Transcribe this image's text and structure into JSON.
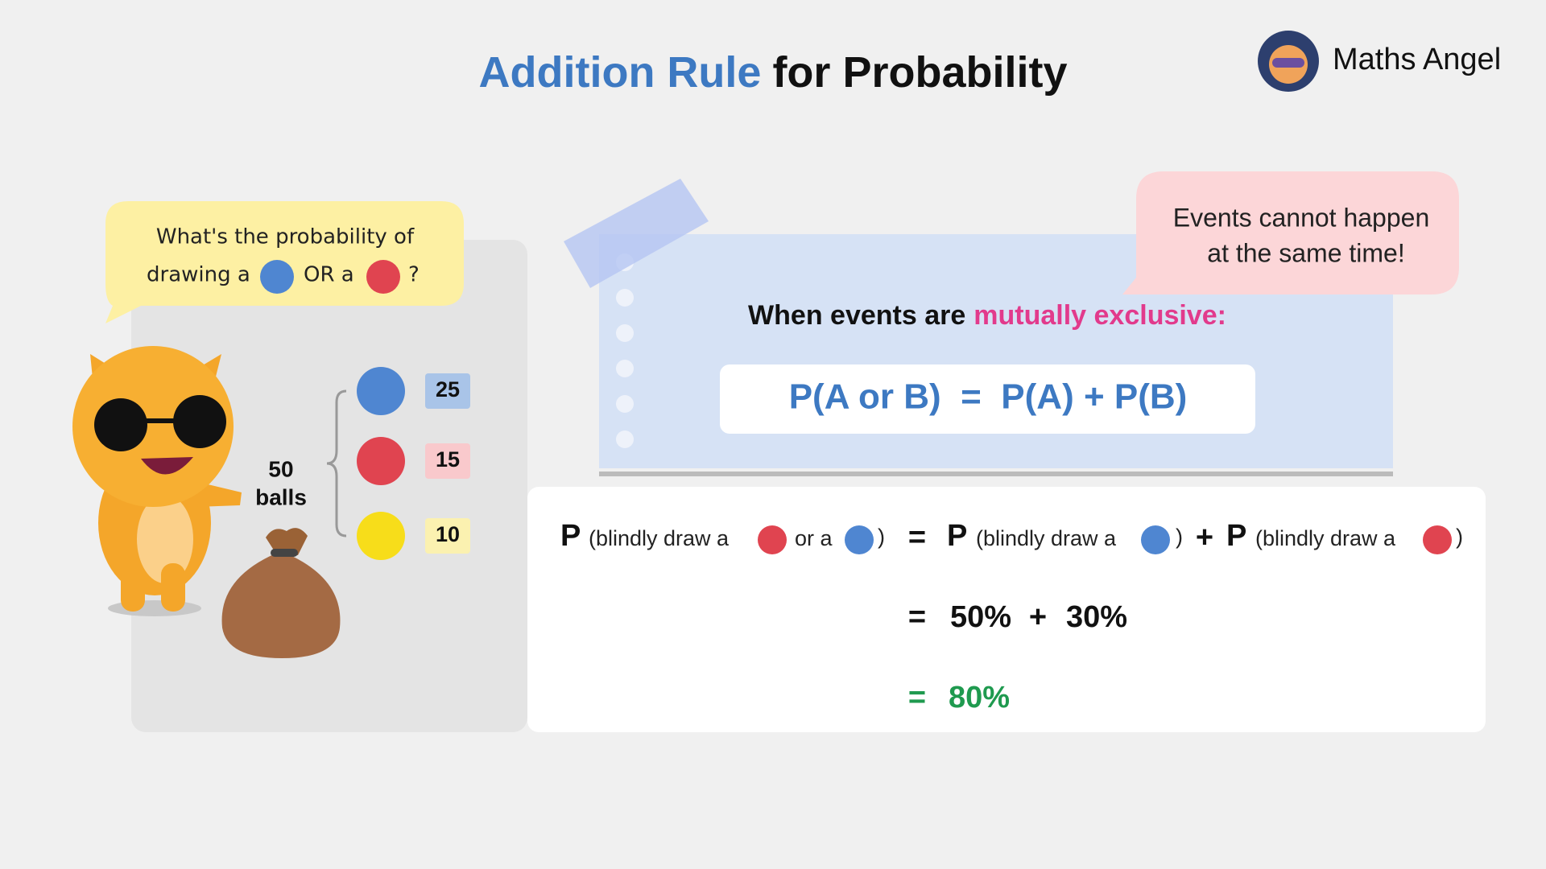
{
  "header": {
    "title_highlight": "Addition Rule",
    "title_rest": "for Probability",
    "brand": "Maths Angel"
  },
  "question": {
    "line1": "What's the probability of",
    "line2_start": "drawing a",
    "line2_or": "OR a",
    "line2_end": "?"
  },
  "bag": {
    "total": "50",
    "total_label": "balls",
    "counts": [
      "25",
      "15",
      "10"
    ]
  },
  "callout": {
    "line1": "Events cannot happen",
    "line2": "at the same time!"
  },
  "rule": {
    "heading": "When events are",
    "heading_highlight": "mutually exclusive:",
    "formula": "P(A or B)  =  P(A) + P(B)"
  },
  "working": {
    "line1": {
      "p1": "P",
      "t1": "(blindly draw a",
      "t2": "or a",
      "c1": ")",
      "eq": "=",
      "p2": "P",
      "t3": "(blindly draw a",
      "c2": ")",
      "plus": "+",
      "p3": "P",
      "t4": "(blindly draw a",
      "c3": ")"
    },
    "line2": {
      "eq": "=",
      "a": "50%",
      "plus": "+",
      "b": "30%"
    },
    "line3": {
      "eq": "=",
      "result": "80%"
    }
  }
}
